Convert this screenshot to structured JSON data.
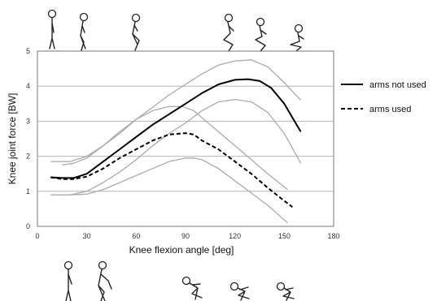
{
  "chart_data": {
    "type": "line",
    "xlabel": "Knee flexion angle [deg]",
    "ylabel": "Knee joint force [BW]",
    "xlim": [
      0,
      180
    ],
    "ylim": [
      0,
      5
    ],
    "xticks": [
      "0",
      "30",
      "60",
      "90",
      "120",
      "150",
      "180"
    ],
    "yticks": [
      "0",
      "1",
      "2",
      "3",
      "4",
      "5"
    ],
    "grid": "horizontal",
    "legend_position": "right",
    "series": [
      {
        "name": "arms not used",
        "style": "solid",
        "color": "#000000",
        "x": [
          8,
          15,
          22,
          30,
          40,
          50,
          60,
          70,
          80,
          90,
          100,
          110,
          120,
          128,
          135,
          142,
          150,
          155,
          160
        ],
        "y": [
          1.4,
          1.38,
          1.38,
          1.5,
          1.85,
          2.2,
          2.55,
          2.9,
          3.2,
          3.5,
          3.8,
          4.05,
          4.18,
          4.2,
          4.15,
          3.95,
          3.5,
          3.1,
          2.7
        ]
      },
      {
        "name": "arms used",
        "style": "dashed",
        "color": "#000000",
        "x": [
          8,
          15,
          22,
          30,
          40,
          50,
          60,
          70,
          80,
          90,
          95,
          100,
          110,
          120,
          130,
          140,
          148,
          155
        ],
        "y": [
          1.4,
          1.35,
          1.35,
          1.42,
          1.65,
          1.95,
          2.2,
          2.45,
          2.62,
          2.66,
          2.62,
          2.45,
          2.2,
          1.85,
          1.5,
          1.1,
          0.8,
          0.55
        ]
      },
      {
        "style": "band",
        "color": "#aaaaaa",
        "x": [
          8,
          20,
          30,
          40,
          50,
          60,
          70,
          80,
          90,
          100,
          110,
          120,
          130,
          140,
          150,
          160
        ],
        "y": [
          1.85,
          1.85,
          2.0,
          2.3,
          2.65,
          3.05,
          3.4,
          3.75,
          4.05,
          4.35,
          4.6,
          4.72,
          4.75,
          4.55,
          4.1,
          3.6
        ]
      },
      {
        "style": "band",
        "color": "#aaaaaa",
        "x": [
          8,
          20,
          30,
          40,
          50,
          60,
          70,
          80,
          90,
          100,
          110,
          120,
          130,
          140,
          150,
          160
        ],
        "y": [
          0.9,
          0.9,
          1.0,
          1.25,
          1.55,
          1.9,
          2.3,
          2.65,
          2.95,
          3.3,
          3.55,
          3.62,
          3.55,
          3.25,
          2.65,
          1.8
        ]
      },
      {
        "style": "band",
        "color": "#aaaaaa",
        "x": [
          15,
          22,
          30,
          40,
          50,
          60,
          70,
          80,
          88,
          95,
          100,
          110,
          120,
          130,
          140,
          152
        ],
        "y": [
          1.75,
          1.8,
          1.95,
          2.3,
          2.7,
          3.05,
          3.3,
          3.42,
          3.42,
          3.3,
          3.1,
          2.7,
          2.3,
          1.9,
          1.5,
          1.05
        ]
      },
      {
        "style": "band",
        "color": "#aaaaaa",
        "x": [
          10,
          20,
          30,
          40,
          50,
          60,
          70,
          80,
          90,
          95,
          100,
          110,
          120,
          130,
          140,
          152
        ],
        "y": [
          0.9,
          0.9,
          0.92,
          1.05,
          1.25,
          1.45,
          1.65,
          1.85,
          1.95,
          1.95,
          1.9,
          1.65,
          1.3,
          0.95,
          0.6,
          0.1
        ]
      }
    ]
  }
}
